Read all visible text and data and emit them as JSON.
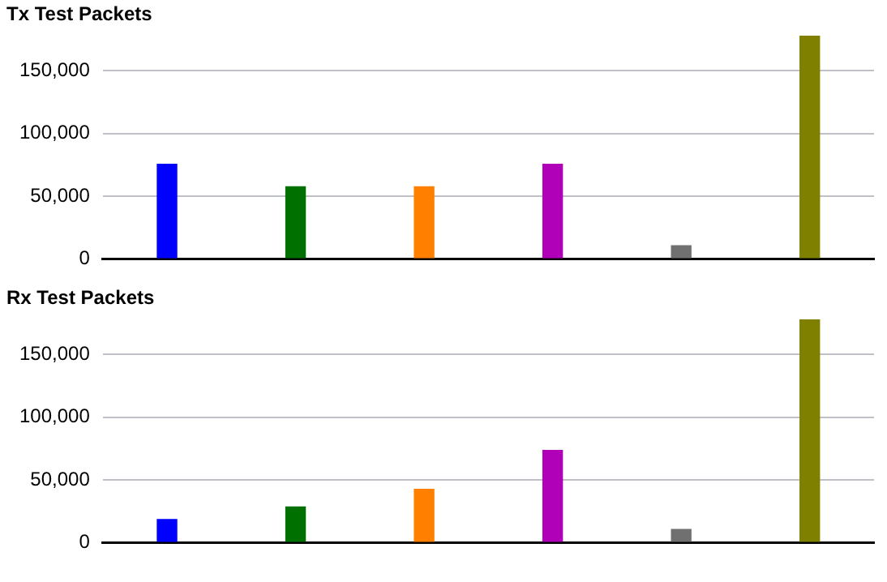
{
  "chart_data": [
    {
      "type": "bar",
      "title": "Tx Test Packets",
      "categories": [
        null,
        null,
        null,
        null,
        null,
        null
      ],
      "values": [
        76000,
        58000,
        58000,
        76000,
        11000,
        178000
      ],
      "colors": [
        "#0000ff",
        "#007000",
        "#ff8000",
        "#b000b8",
        "#707070",
        "#808000"
      ],
      "ylim": [
        0,
        180000
      ],
      "yticks": [
        0,
        {
          "value": 50000,
          "label": "50,000"
        },
        {
          "value": 100000,
          "label": "100,000"
        },
        {
          "value": 150000,
          "label": "150,000"
        }
      ],
      "grid": "y",
      "tick_labels": "y"
    },
    {
      "type": "bar",
      "title": "Rx Test Packets",
      "categories": [
        null,
        null,
        null,
        null,
        null,
        null
      ],
      "values": [
        19000,
        29000,
        43000,
        74000,
        11000,
        178000
      ],
      "colors": [
        "#0000ff",
        "#007000",
        "#ff8000",
        "#b000b8",
        "#707070",
        "#808000"
      ],
      "ylim": [
        0,
        180000
      ],
      "yticks": [
        0,
        {
          "value": 50000,
          "label": "50,000"
        },
        {
          "value": 100000,
          "label": "100,000"
        },
        {
          "value": 150000,
          "label": "150,000"
        }
      ],
      "grid": "y",
      "tick_labels": "y"
    }
  ]
}
